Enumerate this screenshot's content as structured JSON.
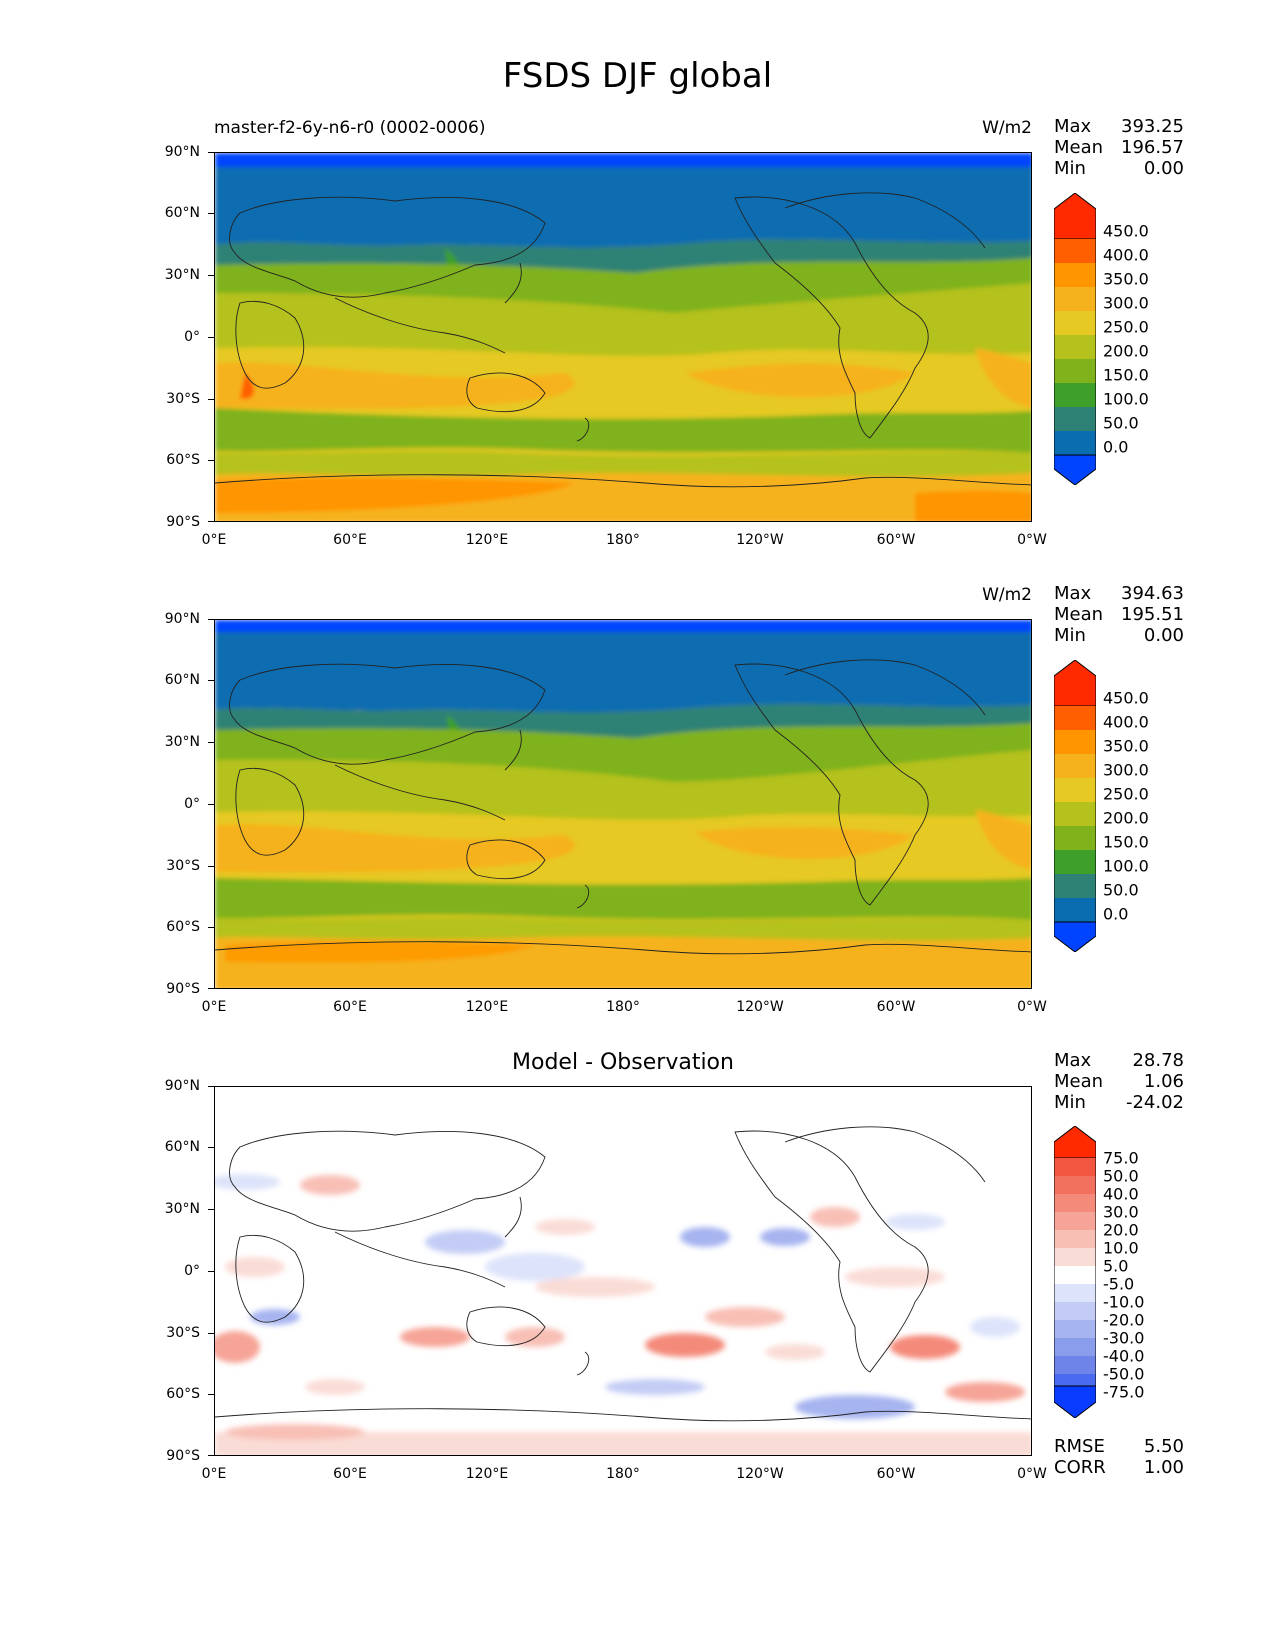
{
  "title": "FSDS DJF global",
  "panels": [
    {
      "left_title": "master-f2-6y-n6-r0 (0002-0006)",
      "center_title": "",
      "units": "W/m2",
      "stats": [
        {
          "label": "Max",
          "value": "393.25"
        },
        {
          "label": "Mean",
          "value": "196.57"
        },
        {
          "label": "Min",
          "value": "0.00"
        }
      ],
      "colorbar_labels": [
        "450.0",
        "400.0",
        "350.0",
        "300.0",
        "250.0",
        "200.0",
        "150.0",
        "100.0",
        "50.0",
        "0.0"
      ],
      "colorbar_colors": [
        "#ff2a00",
        "#ff5f00",
        "#ff9500",
        "#f6b21d",
        "#e6c923",
        "#b5c11d",
        "#7fb21b",
        "#3e9f2a",
        "#2e8275",
        "#0a6db0",
        "#0044ff"
      ]
    },
    {
      "left_title": "",
      "center_title": "",
      "units": "W/m2",
      "stats": [
        {
          "label": "Max",
          "value": "394.63"
        },
        {
          "label": "Mean",
          "value": "195.51"
        },
        {
          "label": "Min",
          "value": "0.00"
        }
      ],
      "colorbar_labels": [
        "450.0",
        "400.0",
        "350.0",
        "300.0",
        "250.0",
        "200.0",
        "150.0",
        "100.0",
        "50.0",
        "0.0"
      ],
      "colorbar_colors": [
        "#ff2a00",
        "#ff5f00",
        "#ff9500",
        "#f6b21d",
        "#e6c923",
        "#b5c11d",
        "#7fb21b",
        "#3e9f2a",
        "#2e8275",
        "#0a6db0",
        "#0044ff"
      ]
    },
    {
      "left_title": "",
      "center_title": "Model - Observation",
      "units": "",
      "stats": [
        {
          "label": "Max",
          "value": "28.78"
        },
        {
          "label": "Mean",
          "value": "1.06"
        },
        {
          "label": "Min",
          "value": "-24.02"
        }
      ],
      "colorbar_labels": [
        "75.0",
        "50.0",
        "40.0",
        "30.0",
        "20.0",
        "10.0",
        "5.0",
        "-5.0",
        "-10.0",
        "-20.0",
        "-30.0",
        "-40.0",
        "-50.0",
        "-75.0"
      ],
      "colorbar_colors": [
        "#ff2a00",
        "#f25540",
        "#f2705e",
        "#f48a7a",
        "#f6a497",
        "#f8bfb5",
        "#fadcd6",
        "#ffffff",
        "#dde3fa",
        "#c3ccf5",
        "#a6b4f0",
        "#8a9cec",
        "#6e84e8",
        "#4a6af0",
        "#0a3cff"
      ],
      "footer_stats": [
        {
          "label": "RMSE",
          "value": "5.50"
        },
        {
          "label": "CORR",
          "value": "1.00"
        }
      ]
    }
  ],
  "y_ticks": [
    "90°N",
    "60°N",
    "30°N",
    "0°",
    "30°S",
    "60°S",
    "90°S"
  ],
  "x_ticks": [
    "0°E",
    "60°E",
    "120°E",
    "180°",
    "120°W",
    "60°W",
    "0°W"
  ]
}
